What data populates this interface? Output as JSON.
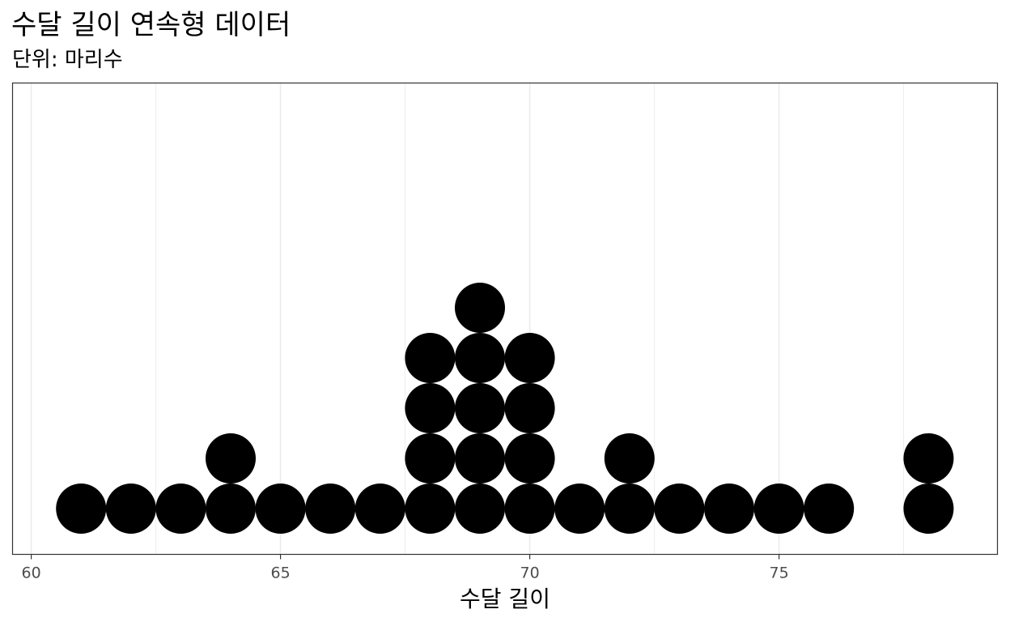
{
  "chart_data": {
    "type": "scatter",
    "subtype": "dotplot",
    "title": "수달 길이 연속형 데이터",
    "subtitle": "단위: 마리수",
    "xlabel": "수달 길이",
    "ylabel": "",
    "xlim": [
      59.6,
      79.4
    ],
    "x_ticks": [
      60,
      65,
      70,
      75
    ],
    "x_tick_labels": [
      "60",
      "65",
      "70",
      "75"
    ],
    "grid": "vertical",
    "legend": "none",
    "colors": {
      "dot": "#000000",
      "grid": "#ebebeb",
      "panel_border": "#333333",
      "background": "#ffffff",
      "tick_label": "#4d4d4d"
    },
    "values": [
      61,
      62,
      63,
      64,
      64,
      65,
      66,
      67,
      68,
      68,
      68,
      68,
      69,
      69,
      69,
      69,
      69,
      70,
      70,
      70,
      70,
      71,
      72,
      72,
      73,
      74,
      75,
      76,
      78,
      78
    ],
    "counts": [
      {
        "x": 61,
        "count": 1
      },
      {
        "x": 62,
        "count": 1
      },
      {
        "x": 63,
        "count": 1
      },
      {
        "x": 64,
        "count": 2
      },
      {
        "x": 65,
        "count": 1
      },
      {
        "x": 66,
        "count": 1
      },
      {
        "x": 67,
        "count": 1
      },
      {
        "x": 68,
        "count": 4
      },
      {
        "x": 69,
        "count": 5
      },
      {
        "x": 70,
        "count": 4
      },
      {
        "x": 71,
        "count": 1
      },
      {
        "x": 72,
        "count": 2
      },
      {
        "x": 73,
        "count": 1
      },
      {
        "x": 74,
        "count": 1
      },
      {
        "x": 75,
        "count": 1
      },
      {
        "x": 76,
        "count": 1
      },
      {
        "x": 78,
        "count": 2
      }
    ]
  }
}
